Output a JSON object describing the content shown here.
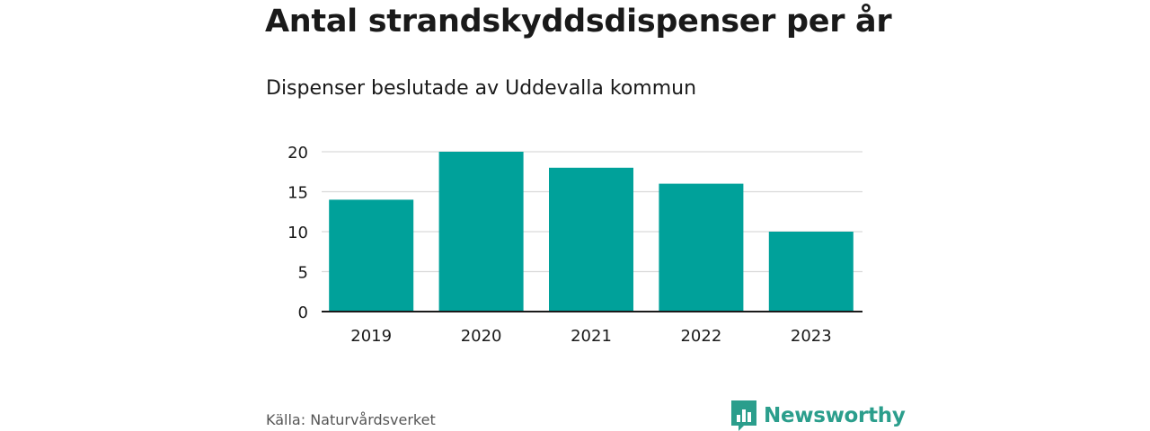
{
  "header": {
    "title": "Antal strandskyddsdispenser per år",
    "subtitle": "Dispenser beslutade av Uddevalla kommun"
  },
  "chart_data": {
    "type": "bar",
    "title": "Antal strandskyddsdispenser per år",
    "subtitle": "Dispenser beslutade av Uddevalla kommun",
    "categories": [
      "2019",
      "2020",
      "2021",
      "2022",
      "2023"
    ],
    "values": [
      14,
      20,
      18,
      16,
      10
    ],
    "yticks": [
      0,
      5,
      10,
      15,
      20
    ],
    "ylim": [
      0,
      20
    ],
    "xlabel": "",
    "ylabel": "",
    "grid": true,
    "bar_color": "#00a19a"
  },
  "footer": {
    "source": "Källa: Naturvårdsverket",
    "brand": "Newsworthy",
    "brand_icon": "bar-chart-speech-bubble-icon",
    "brand_color": "#2b9e8c"
  }
}
